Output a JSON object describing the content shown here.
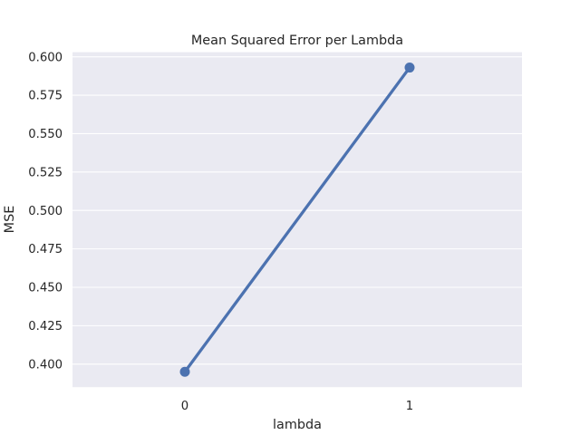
{
  "chart_data": {
    "type": "line",
    "title": "Mean Squared Error per Lambda",
    "xlabel": "lambda",
    "ylabel": "MSE",
    "categories": [
      "0",
      "1"
    ],
    "series": [
      {
        "values": [
          0.395,
          0.593
        ],
        "color": "#4c72b0"
      }
    ],
    "ylim": [
      0.385,
      0.603
    ],
    "yticks": [
      0.4,
      0.425,
      0.45,
      0.475,
      0.5,
      0.525,
      0.55,
      0.575,
      0.6
    ],
    "ytick_labels": [
      "0.400",
      "0.425",
      "0.450",
      "0.475",
      "0.500",
      "0.525",
      "0.550",
      "0.575",
      "0.600"
    ],
    "grid": true,
    "style": {
      "background": "#eaeaf2",
      "grid_color": "#ffffff"
    }
  }
}
